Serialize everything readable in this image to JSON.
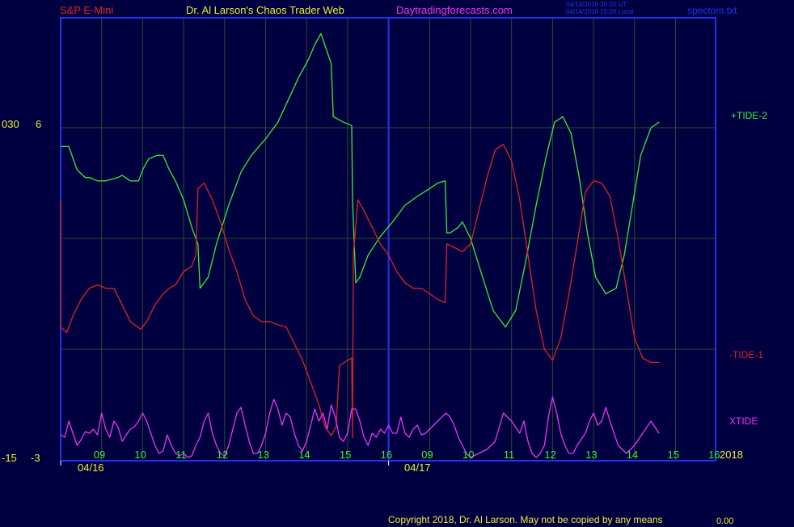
{
  "header": {
    "symbol": "S&P E-Mini",
    "site": "Dr. Al Larson's Chaos Trader Web",
    "url": "Daytradingforecasts.com",
    "stamp_line1": "04/14/2018 20:20 UT",
    "stamp_line2": "04/14/2018 15:20 Local",
    "file": "spectom.txt"
  },
  "footer": {
    "copyright": "Copyright 2018, Dr. Al Larson. May not be copied by any means",
    "readout": "0.00"
  },
  "colors": {
    "background": "#000040",
    "frame": "#2233ee",
    "grid": "#2e4a2e",
    "tide_plus": "#33ee33",
    "tide_minus": "#dd2222",
    "xtide": "#ee33ee",
    "yellow_text": "#eeee33",
    "red_text": "#dd2222"
  },
  "chart_data": {
    "type": "line",
    "left_axis": {
      "outer_labels": [
        "030",
        "-15"
      ],
      "inner_labels": [
        "6",
        "-3"
      ]
    },
    "x_ticks": [
      "09",
      "10",
      "11",
      "12",
      "13",
      "14",
      "15",
      "16",
      "09",
      "10",
      "11",
      "12",
      "13",
      "14",
      "15",
      "16"
    ],
    "dates": [
      "04/16",
      "04/17"
    ],
    "year": "2018",
    "series": [
      {
        "name": "+TIDE-2",
        "color": "#33ee33",
        "points": [
          [
            0,
            0.83
          ],
          [
            0.2,
            0.83
          ],
          [
            0.4,
            0.62
          ],
          [
            0.6,
            0.55
          ],
          [
            0.7,
            0.55
          ],
          [
            0.9,
            0.52
          ],
          [
            1.1,
            0.52
          ],
          [
            1.4,
            0.55
          ],
          [
            1.5,
            0.57
          ],
          [
            1.7,
            0.52
          ],
          [
            1.9,
            0.52
          ],
          [
            2.0,
            0.62
          ],
          [
            2.15,
            0.72
          ],
          [
            2.35,
            0.75
          ],
          [
            2.5,
            0.75
          ],
          [
            2.65,
            0.62
          ],
          [
            2.8,
            0.52
          ],
          [
            3.0,
            0.35
          ],
          [
            3.2,
            0.1
          ],
          [
            3.35,
            -0.05
          ],
          [
            3.4,
            -0.45
          ],
          [
            3.6,
            -0.35
          ],
          [
            3.8,
            -0.05
          ],
          [
            4.1,
            0.3
          ],
          [
            4.4,
            0.6
          ],
          [
            4.65,
            0.75
          ],
          [
            5.0,
            0.9
          ],
          [
            5.3,
            1.05
          ],
          [
            5.55,
            1.25
          ],
          [
            5.8,
            1.45
          ],
          [
            6.05,
            1.62
          ],
          [
            6.2,
            1.75
          ],
          [
            6.35,
            1.85
          ],
          [
            6.6,
            1.58
          ],
          [
            6.65,
            1.1
          ],
          [
            6.9,
            1.05
          ],
          [
            7.1,
            1.02
          ],
          [
            7.12,
            0.35
          ],
          [
            7.2,
            -0.4
          ],
          [
            7.3,
            -0.35
          ],
          [
            7.5,
            -0.15
          ],
          [
            7.8,
            0.02
          ],
          [
            8.1,
            0.15
          ],
          [
            8.4,
            0.3
          ],
          [
            8.7,
            0.38
          ],
          [
            9.0,
            0.45
          ],
          [
            9.2,
            0.5
          ],
          [
            9.38,
            0.52
          ],
          [
            9.42,
            0.05
          ],
          [
            9.5,
            0.05
          ],
          [
            9.7,
            0.1
          ],
          [
            9.8,
            0.15
          ],
          [
            10.0,
            0.0
          ],
          [
            10.25,
            -0.3
          ],
          [
            10.55,
            -0.65
          ],
          [
            10.85,
            -0.8
          ],
          [
            11.1,
            -0.65
          ],
          [
            11.35,
            -0.2
          ],
          [
            11.6,
            0.3
          ],
          [
            11.85,
            0.75
          ],
          [
            12.05,
            1.05
          ],
          [
            12.25,
            1.1
          ],
          [
            12.45,
            0.95
          ],
          [
            12.65,
            0.55
          ],
          [
            12.85,
            0.05
          ],
          [
            13.05,
            -0.35
          ],
          [
            13.3,
            -0.5
          ],
          [
            13.55,
            -0.45
          ],
          [
            13.75,
            -0.15
          ],
          [
            13.95,
            0.3
          ],
          [
            14.15,
            0.75
          ],
          [
            14.4,
            1.0
          ],
          [
            14.6,
            1.05
          ]
        ]
      },
      {
        "name": "-TIDE-1",
        "color": "#dd2222",
        "points": [
          [
            0,
            0.35
          ],
          [
            0,
            -0.8
          ],
          [
            0.15,
            -0.85
          ],
          [
            0.3,
            -0.7
          ],
          [
            0.5,
            -0.55
          ],
          [
            0.7,
            -0.45
          ],
          [
            0.9,
            -0.42
          ],
          [
            1.1,
            -0.45
          ],
          [
            1.3,
            -0.45
          ],
          [
            1.5,
            -0.6
          ],
          [
            1.7,
            -0.75
          ],
          [
            1.95,
            -0.82
          ],
          [
            2.1,
            -0.75
          ],
          [
            2.3,
            -0.6
          ],
          [
            2.5,
            -0.5
          ],
          [
            2.65,
            -0.45
          ],
          [
            2.8,
            -0.42
          ],
          [
            3.0,
            -0.3
          ],
          [
            3.2,
            -0.25
          ],
          [
            3.3,
            -0.15
          ],
          [
            3.35,
            0.45
          ],
          [
            3.5,
            0.5
          ],
          [
            3.7,
            0.35
          ],
          [
            3.9,
            0.15
          ],
          [
            4.1,
            -0.1
          ],
          [
            4.3,
            -0.3
          ],
          [
            4.5,
            -0.55
          ],
          [
            4.7,
            -0.7
          ],
          [
            4.9,
            -0.75
          ],
          [
            5.1,
            -0.75
          ],
          [
            5.3,
            -0.78
          ],
          [
            5.5,
            -0.8
          ],
          [
            5.7,
            -0.95
          ],
          [
            5.9,
            -1.1
          ],
          [
            6.1,
            -1.3
          ],
          [
            6.3,
            -1.5
          ],
          [
            6.45,
            -1.7
          ],
          [
            6.6,
            -1.78
          ],
          [
            6.72,
            -1.7
          ],
          [
            6.8,
            -1.15
          ],
          [
            7.0,
            -1.1
          ],
          [
            7.1,
            -1.08
          ],
          [
            7.12,
            -1.8
          ],
          [
            7.14,
            -0.15
          ],
          [
            7.25,
            0.35
          ],
          [
            7.4,
            0.25
          ],
          [
            7.6,
            0.1
          ],
          [
            7.8,
            -0.05
          ],
          [
            8.0,
            -0.15
          ],
          [
            8.2,
            -0.3
          ],
          [
            8.4,
            -0.4
          ],
          [
            8.6,
            -0.45
          ],
          [
            8.8,
            -0.45
          ],
          [
            9.0,
            -0.5
          ],
          [
            9.2,
            -0.55
          ],
          [
            9.38,
            -0.58
          ],
          [
            9.42,
            -0.05
          ],
          [
            9.6,
            -0.08
          ],
          [
            9.8,
            -0.12
          ],
          [
            10.0,
            -0.05
          ],
          [
            10.2,
            0.25
          ],
          [
            10.4,
            0.55
          ],
          [
            10.6,
            0.8
          ],
          [
            10.8,
            0.85
          ],
          [
            11.0,
            0.7
          ],
          [
            11.2,
            0.35
          ],
          [
            11.4,
            -0.15
          ],
          [
            11.6,
            -0.65
          ],
          [
            11.8,
            -1.0
          ],
          [
            12.0,
            -1.1
          ],
          [
            12.2,
            -0.9
          ],
          [
            12.4,
            -0.5
          ],
          [
            12.6,
            -0.05
          ],
          [
            12.8,
            0.42
          ],
          [
            13.0,
            0.52
          ],
          [
            13.2,
            0.5
          ],
          [
            13.4,
            0.38
          ],
          [
            13.6,
            0.0
          ],
          [
            13.8,
            -0.45
          ],
          [
            14.0,
            -0.9
          ],
          [
            14.2,
            -1.08
          ],
          [
            14.4,
            -1.12
          ],
          [
            14.6,
            -1.12
          ]
        ]
      },
      {
        "name": "XTIDE",
        "color": "#ee33ee",
        "points": [
          [
            0,
            0.28
          ],
          [
            0.1,
            0.25
          ],
          [
            0.2,
            0.45
          ],
          [
            0.3,
            0.3
          ],
          [
            0.4,
            0.15
          ],
          [
            0.5,
            0.22
          ],
          [
            0.6,
            0.32
          ],
          [
            0.7,
            0.3
          ],
          [
            0.8,
            0.35
          ],
          [
            0.9,
            0.28
          ],
          [
            1.0,
            0.55
          ],
          [
            1.1,
            0.35
          ],
          [
            1.2,
            0.25
          ],
          [
            1.3,
            0.45
          ],
          [
            1.4,
            0.38
          ],
          [
            1.5,
            0.2
          ],
          [
            1.6,
            0.28
          ],
          [
            1.7,
            0.35
          ],
          [
            1.8,
            0.38
          ],
          [
            1.9,
            0.45
          ],
          [
            2.0,
            0.55
          ],
          [
            2.1,
            0.45
          ],
          [
            2.2,
            0.3
          ],
          [
            2.3,
            0.15
          ],
          [
            2.4,
            0.05
          ],
          [
            2.5,
            0.08
          ],
          [
            2.6,
            0.28
          ],
          [
            2.7,
            0.15
          ],
          [
            2.8,
            0.05
          ],
          [
            2.9,
            0.02
          ],
          [
            3.0,
            0.05
          ],
          [
            3.1,
            0.0
          ],
          [
            3.2,
            0.02
          ],
          [
            3.3,
            0.15
          ],
          [
            3.4,
            0.25
          ],
          [
            3.5,
            0.45
          ],
          [
            3.6,
            0.55
          ],
          [
            3.7,
            0.3
          ],
          [
            3.8,
            0.15
          ],
          [
            3.9,
            0.05
          ],
          [
            4.0,
            0.02
          ],
          [
            4.1,
            0.15
          ],
          [
            4.2,
            0.35
          ],
          [
            4.3,
            0.55
          ],
          [
            4.4,
            0.62
          ],
          [
            4.5,
            0.4
          ],
          [
            4.6,
            0.2
          ],
          [
            4.7,
            0.05
          ],
          [
            4.8,
            0.05
          ],
          [
            4.9,
            0.15
          ],
          [
            5.0,
            0.3
          ],
          [
            5.1,
            0.55
          ],
          [
            5.2,
            0.72
          ],
          [
            5.3,
            0.6
          ],
          [
            5.4,
            0.4
          ],
          [
            5.5,
            0.55
          ],
          [
            5.6,
            0.5
          ],
          [
            5.7,
            0.3
          ],
          [
            5.8,
            0.15
          ],
          [
            5.9,
            0.08
          ],
          [
            6.0,
            0.2
          ],
          [
            6.1,
            0.4
          ],
          [
            6.2,
            0.6
          ],
          [
            6.3,
            0.45
          ],
          [
            6.4,
            0.55
          ],
          [
            6.5,
            0.35
          ],
          [
            6.6,
            0.65
          ],
          [
            6.7,
            0.5
          ],
          [
            6.8,
            0.25
          ],
          [
            6.9,
            0.2
          ],
          [
            7.0,
            0.3
          ],
          [
            7.1,
            0.6
          ],
          [
            7.2,
            0.6
          ],
          [
            7.3,
            0.45
          ],
          [
            7.4,
            0.25
          ],
          [
            7.5,
            0.15
          ],
          [
            7.6,
            0.3
          ],
          [
            7.7,
            0.25
          ],
          [
            7.8,
            0.35
          ],
          [
            7.9,
            0.3
          ],
          [
            8.0,
            0.4
          ],
          [
            8.1,
            0.3
          ],
          [
            8.2,
            0.3
          ],
          [
            8.3,
            0.5
          ],
          [
            8.4,
            0.3
          ],
          [
            8.5,
            0.25
          ],
          [
            8.6,
            0.35
          ],
          [
            8.7,
            0.4
          ],
          [
            8.8,
            0.28
          ],
          [
            8.9,
            0.3
          ],
          [
            9.0,
            0.35
          ],
          [
            9.1,
            0.4
          ],
          [
            9.2,
            0.45
          ],
          [
            9.3,
            0.5
          ],
          [
            9.4,
            0.55
          ],
          [
            9.5,
            0.5
          ],
          [
            9.6,
            0.4
          ],
          [
            9.7,
            0.25
          ],
          [
            9.8,
            0.15
          ],
          [
            9.9,
            0.05
          ],
          [
            10.0,
            0.0
          ],
          [
            10.2,
            0.05
          ],
          [
            10.4,
            0.1
          ],
          [
            10.6,
            0.2
          ],
          [
            10.8,
            0.55
          ],
          [
            11.0,
            0.45
          ],
          [
            11.2,
            0.3
          ],
          [
            11.3,
            0.45
          ],
          [
            11.4,
            0.2
          ],
          [
            11.5,
            0.05
          ],
          [
            11.6,
            0.0
          ],
          [
            11.7,
            0.05
          ],
          [
            11.8,
            0.15
          ],
          [
            11.9,
            0.5
          ],
          [
            12.0,
            0.75
          ],
          [
            12.1,
            0.55
          ],
          [
            12.2,
            0.3
          ],
          [
            12.3,
            0.15
          ],
          [
            12.4,
            0.05
          ],
          [
            12.5,
            0.05
          ],
          [
            12.6,
            0.15
          ],
          [
            12.8,
            0.3
          ],
          [
            12.9,
            0.45
          ],
          [
            13.0,
            0.55
          ],
          [
            13.1,
            0.4
          ],
          [
            13.2,
            0.45
          ],
          [
            13.3,
            0.62
          ],
          [
            13.4,
            0.45
          ],
          [
            13.5,
            0.3
          ],
          [
            13.6,
            0.15
          ],
          [
            13.8,
            0.05
          ],
          [
            14.0,
            0.15
          ],
          [
            14.2,
            0.3
          ],
          [
            14.4,
            0.45
          ],
          [
            14.6,
            0.3
          ]
        ]
      }
    ],
    "ylim": [
      -3,
      6
    ]
  }
}
